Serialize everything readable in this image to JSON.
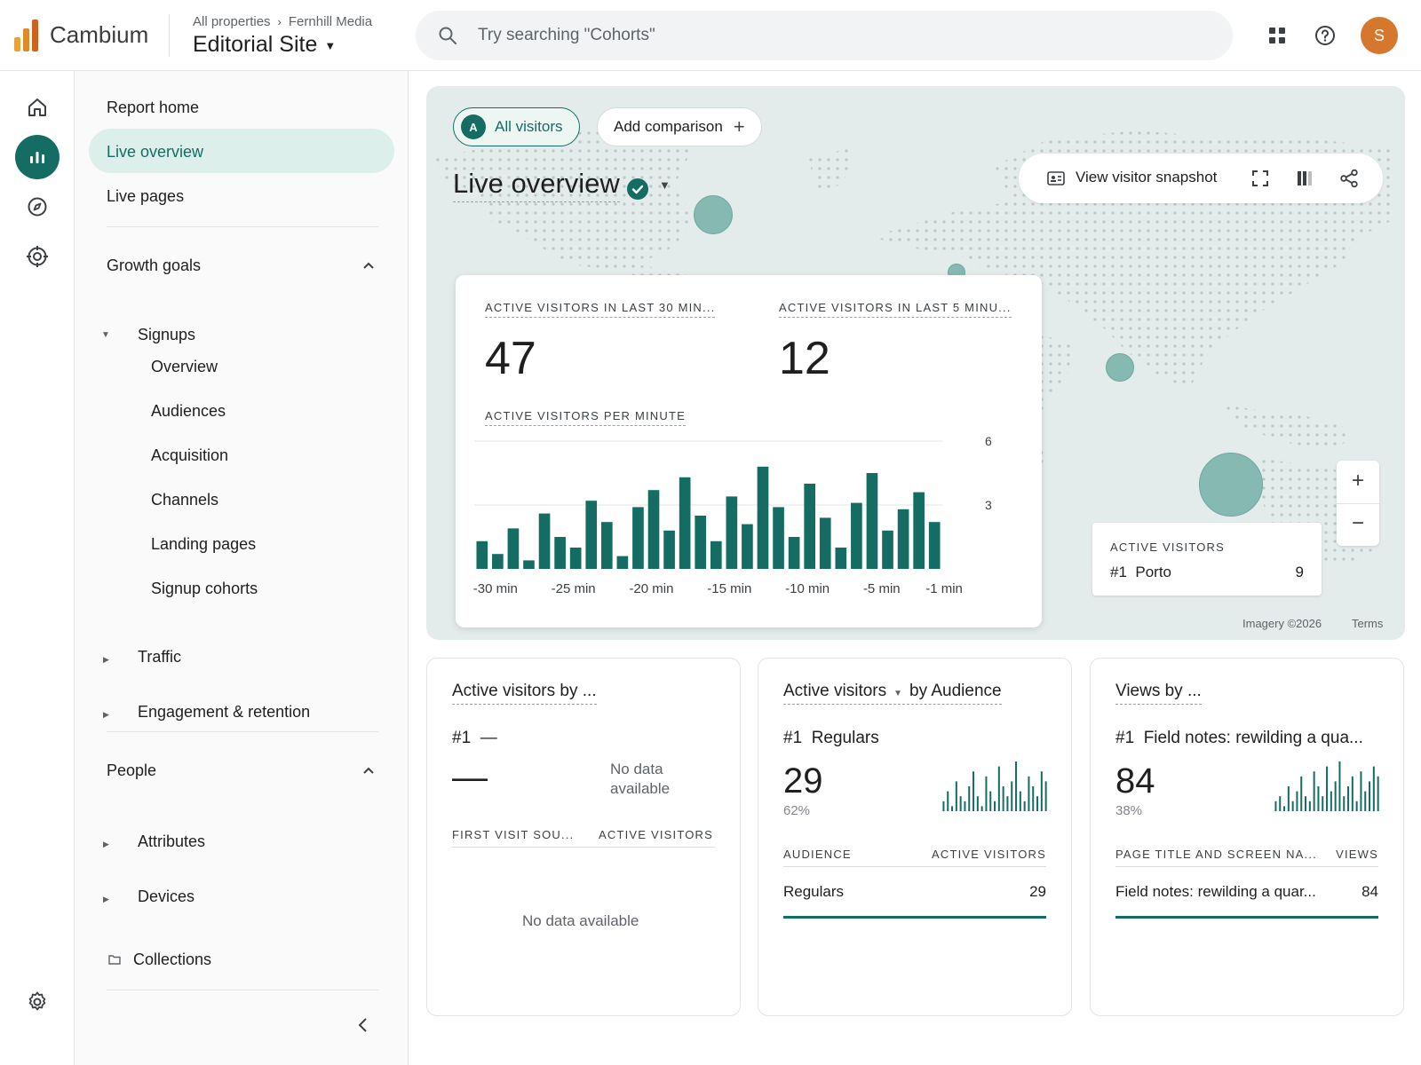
{
  "header": {
    "brand": "Cambium",
    "breadcrumb": [
      "All properties",
      "Fernhill Media"
    ],
    "property": "Editorial Site",
    "search_placeholder": "Try searching \"Cohorts\"",
    "avatar_letter": "S",
    "icons": [
      "bar-chart-logo-icon",
      "search-icon",
      "apps-grid-icon",
      "help-icon"
    ]
  },
  "rail": {
    "items": [
      "home-icon",
      "reports-icon",
      "explore-icon",
      "advertising-icon"
    ],
    "active": "reports-icon",
    "bottom": "settings-icon"
  },
  "sidebar": {
    "report_home": "Report home",
    "live_overview": "Live overview",
    "live_pages": "Live pages",
    "growth_goals": "Growth goals",
    "signups": "Signups",
    "signup_items": [
      "Overview",
      "Audiences",
      "Acquisition",
      "Channels",
      "Landing pages",
      "Signup cohorts"
    ],
    "traffic": "Traffic",
    "engagement": "Engagement & retention",
    "people": "People",
    "attributes": "Attributes",
    "devices": "Devices",
    "collections": "Collections"
  },
  "map": {
    "chip_label": "All visitors",
    "chip_badge": "A",
    "add_comparison": "Add comparison",
    "title": "Live overview",
    "snapshot": "View visitor snapshot",
    "zoom_in": "+",
    "zoom_out": "−",
    "legend_title": "ACTIVE VISITORS",
    "legend_rank": "#1",
    "legend_city": "Porto",
    "legend_value": "9",
    "imagery": "Imagery ©2026",
    "terms": "Terms"
  },
  "stats": {
    "k1_label": "ACTIVE VISITORS IN LAST 30 MIN...",
    "k1_value": "47",
    "k2_label": "ACTIVE VISITORS IN LAST 5 MINU...",
    "k2_value": "12",
    "chart_label": "ACTIVE VISITORS PER MINUTE"
  },
  "chart_data": {
    "type": "bar",
    "categories": [
      "-30 min",
      "-29 min",
      "-28 min",
      "-27 min",
      "-26 min",
      "-25 min",
      "-24 min",
      "-23 min",
      "-22 min",
      "-21 min",
      "-20 min",
      "-19 min",
      "-18 min",
      "-17 min",
      "-16 min",
      "-15 min",
      "-14 min",
      "-13 min",
      "-12 min",
      "-11 min",
      "-10 min",
      "-9 min",
      "-8 min",
      "-7 min",
      "-6 min",
      "-5 min",
      "-4 min",
      "-3 min",
      "-2 min",
      "-1 min"
    ],
    "values": [
      1.3,
      0.7,
      1.9,
      0.4,
      2.6,
      1.5,
      1.0,
      3.2,
      2.2,
      0.6,
      2.9,
      3.7,
      1.8,
      4.3,
      2.5,
      1.3,
      3.4,
      2.1,
      4.8,
      2.9,
      1.5,
      4.0,
      2.4,
      1.0,
      3.1,
      4.5,
      1.8,
      2.8,
      3.6,
      2.2
    ],
    "x_tick_labels": [
      "-30 min",
      "-25 min",
      "-20 min",
      "-15 min",
      "-10 min",
      "-5 min",
      "-1 min"
    ],
    "y_ticks": [
      3,
      6
    ],
    "ylim": [
      0,
      6
    ],
    "color": "#146c63"
  },
  "cards": [
    {
      "title": "Active visitors by ...",
      "rank": "#1",
      "rank_value": "—",
      "big": "—",
      "no_data_top": "No data available",
      "col1": "FIRST VISIT SOU...",
      "col2": "ACTIVE VISITORS",
      "no_data": "No data available"
    },
    {
      "title_metric": "Active visitors",
      "title_rest": "by Audience",
      "rank": "#1",
      "rank_value": "Regulars",
      "big": "29",
      "pct": "62%",
      "col1": "AUDIENCE",
      "col2": "ACTIVE VISITORS",
      "row_label": "Regulars",
      "row_value": "29",
      "sparkline": [
        0.2,
        0.4,
        0.1,
        0.6,
        0.3,
        0.2,
        0.5,
        0.8,
        0.3,
        0.1,
        0.7,
        0.4,
        0.2,
        0.9,
        0.5,
        0.3,
        0.6,
        1.0,
        0.4,
        0.2,
        0.7,
        0.5,
        0.3,
        0.8,
        0.6
      ]
    },
    {
      "title": "Views by ...",
      "rank": "#1",
      "rank_value": "Field notes: rewilding a qua...",
      "big": "84",
      "pct": "38%",
      "col1": "PAGE TITLE AND SCREEN NA...",
      "col2": "VIEWS",
      "row_label": "Field notes: rewilding a quar...",
      "row_value": "84",
      "sparkline": [
        0.2,
        0.3,
        0.1,
        0.5,
        0.2,
        0.4,
        0.7,
        0.3,
        0.2,
        0.8,
        0.5,
        0.3,
        0.9,
        0.4,
        0.6,
        1.0,
        0.3,
        0.5,
        0.7,
        0.2,
        0.8,
        0.4,
        0.6,
        0.9,
        0.7
      ]
    }
  ]
}
